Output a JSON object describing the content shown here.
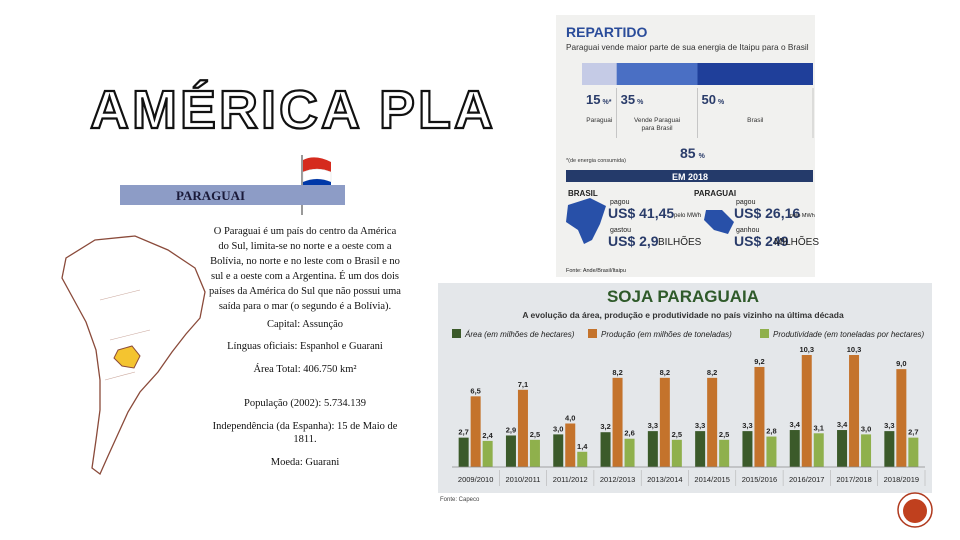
{
  "title": "AMÉRICA PLA",
  "paraguai": {
    "heading": "PARAGUAI",
    "paragraph": [
      "O Paraguai é um país do centro da América",
      "do Sul, limita-se no norte e a oeste com a",
      "Bolívia, no norte e no leste com o Brasil e no",
      "sul e a oeste com a Argentina. É um dos dois",
      "países da América do Sul que não possui uma",
      "saída para o mar (o segundo é a Bolívia)."
    ],
    "capital": "Capital: Assunção",
    "linguas": "Línguas oficiais: Espanhol e Guarani",
    "area": "Área Total: 406.750 km²",
    "populacao": "População (2002): 5.734.139",
    "independencia": [
      "Independência (da Espanha): 15 de Maio de",
      "1811."
    ],
    "moeda": "Moeda: Guarani"
  },
  "repartido": {
    "title": "REPARTIDO",
    "subtitle": "Paraguai vende maior parte de sua energia de Itaipu para o Brasil",
    "segments": [
      {
        "value": 15,
        "unit": "%*",
        "label": "Paraguai",
        "color": "#c5cbe6"
      },
      {
        "value": 35,
        "unit": "%",
        "label": "Vende Paraguai para Brasil",
        "color": "#4a6fc4"
      },
      {
        "value": 50,
        "unit": "%",
        "label": "Brasil",
        "color": "#1f3f9a"
      }
    ],
    "note": "*(de energia consumida)",
    "total": {
      "value": 85,
      "unit": "%"
    },
    "year": "EM 2018",
    "brasil": {
      "name": "BRASIL",
      "paid_label": "pagou",
      "paid": "US$ 41,45",
      "paid_unit": "pelo MWh",
      "spent_label": "gastou",
      "spent": "US$ 2,9",
      "spent_unit": "BILHÕES"
    },
    "paraguai": {
      "name": "PARAGUAI",
      "paid_label": "pagou",
      "paid": "US$ 26,16",
      "paid_unit": "pelo MWh",
      "earned_label": "ganhou",
      "earned": "US$ 249",
      "earned_unit": "MILHÕES"
    },
    "source": "Fonte: Ande/Brasil/Itaipu"
  },
  "chart_data": {
    "type": "bar",
    "title": "SOJA PARAGUAIA",
    "subtitle": "A evolução da área, produção e produtividade no país vizinho na última década",
    "categories": [
      "2009/2010",
      "2010/2011",
      "2011/2012",
      "2012/2013",
      "2013/2014",
      "2014/2015",
      "2015/2016",
      "2016/2017",
      "2017/2018",
      "2018/2019"
    ],
    "series": [
      {
        "name": "Área (em milhões de hectares)",
        "color": "#3b5a2a",
        "values": [
          2.7,
          2.9,
          3.0,
          3.2,
          3.3,
          3.3,
          3.3,
          3.4,
          3.4,
          3.3
        ],
        "value_labels": [
          "2,7",
          "2,9",
          "3,0",
          "3,2",
          "3,3",
          "3,3",
          "3,3",
          "3,4",
          "3,4",
          "3,3"
        ]
      },
      {
        "name": "Produção (em milhões de toneladas)",
        "color": "#c4732c",
        "values": [
          6.5,
          7.1,
          4.0,
          8.2,
          8.2,
          8.2,
          9.2,
          10.3,
          10.3,
          9.0
        ],
        "value_labels": [
          "6,5",
          "7,1",
          "4,0",
          "8,2",
          "8,2",
          "8,2",
          "9,2",
          "10,3",
          "10,3",
          "9,0"
        ]
      },
      {
        "name": "Produtividade (em toneladas por hectares)",
        "color": "#8fb04c",
        "values": [
          2.4,
          2.5,
          1.4,
          2.6,
          2.5,
          2.5,
          2.8,
          3.1,
          3.0,
          2.7
        ],
        "value_labels": [
          "2,4",
          "2,5",
          "1,4",
          "2,6",
          "2,5",
          "2,5",
          "2,8",
          "3,1",
          "3,0",
          "2,7"
        ]
      }
    ],
    "source": "Fonte: Capeco"
  }
}
